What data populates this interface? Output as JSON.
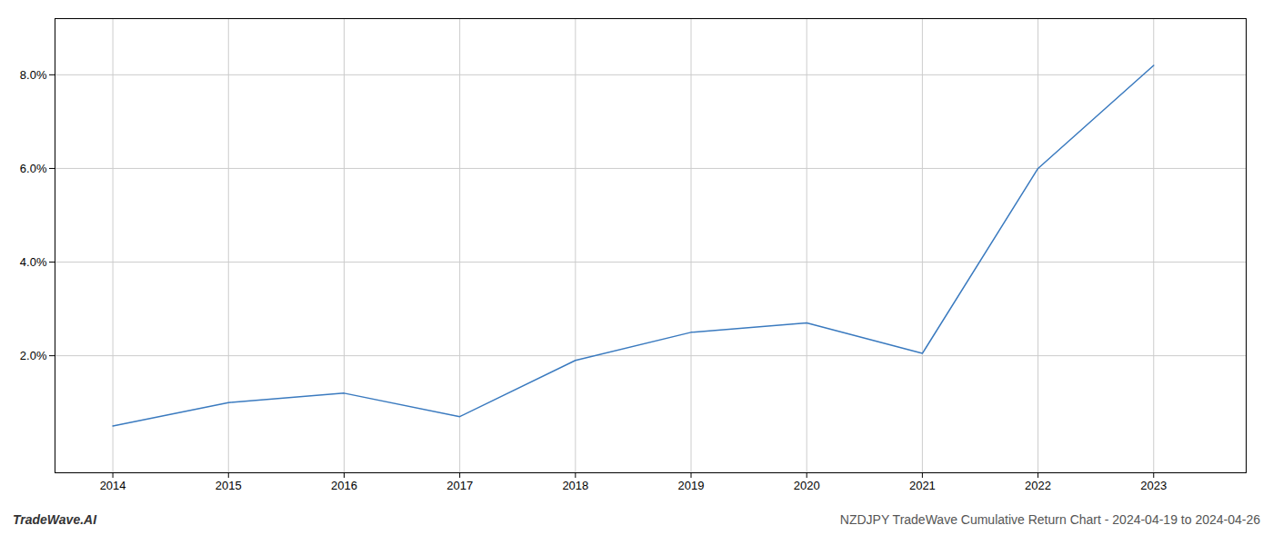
{
  "chart_data": {
    "type": "line",
    "x": [
      2014,
      2015,
      2016,
      2017,
      2018,
      2019,
      2020,
      2021,
      2022,
      2023
    ],
    "values": [
      0.005,
      0.01,
      0.012,
      0.007,
      0.019,
      0.025,
      0.027,
      0.0205,
      0.06,
      0.082
    ],
    "color": "#3a7abf",
    "xlim": [
      2013.5,
      2023.8
    ],
    "xticks": [
      2014,
      2015,
      2016,
      2017,
      2018,
      2019,
      2020,
      2021,
      2022,
      2023
    ],
    "ylim": [
      -0.005,
      0.092
    ],
    "yticks": [
      {
        "value": 0.02,
        "label": "2.0%"
      },
      {
        "value": 0.04,
        "label": "4.0%"
      },
      {
        "value": 0.06,
        "label": "6.0%"
      },
      {
        "value": 0.08,
        "label": "8.0%"
      }
    ],
    "grid": true,
    "annotations": [
      "TradeWave.AI",
      "NZDJPY TradeWave Cumulative Return Chart - 2024-04-19 to 2024-04-26"
    ]
  }
}
